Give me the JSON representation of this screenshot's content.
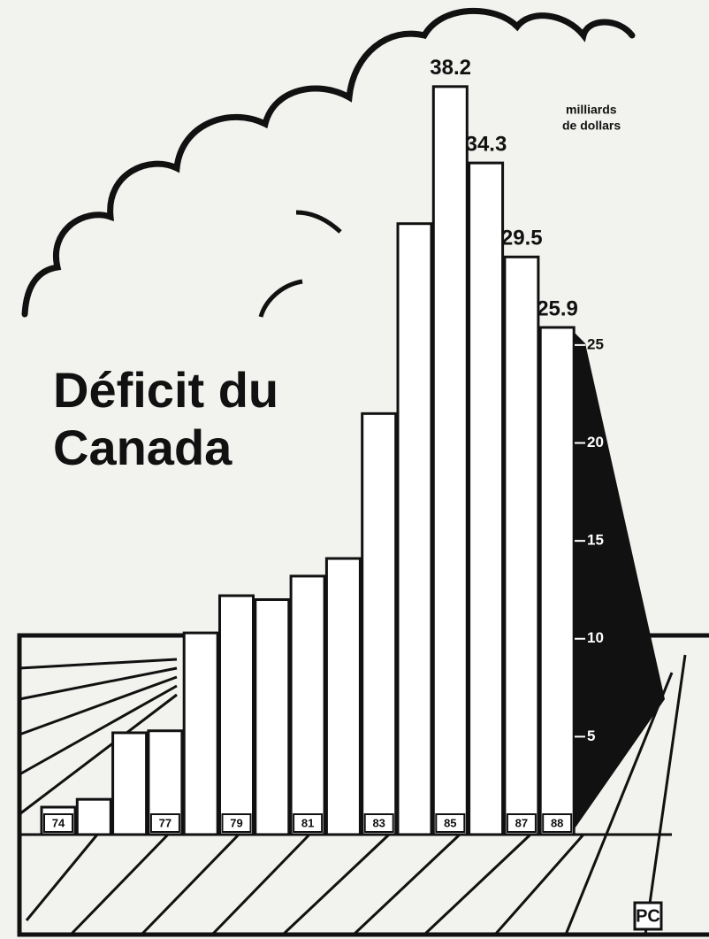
{
  "chart_data": {
    "type": "bar",
    "title": [
      "Déficit du",
      "Canada"
    ],
    "units": [
      "milliards",
      "de dollars"
    ],
    "credit": "PC",
    "categories": [
      "74",
      null,
      null,
      "77",
      null,
      "79",
      null,
      "81",
      null,
      "83",
      null,
      "85",
      null,
      "87",
      "88"
    ],
    "values": [
      1.4,
      1.8,
      5.2,
      5.3,
      10.3,
      12.2,
      12.0,
      13.2,
      14.1,
      21.5,
      31.2,
      38.2,
      34.3,
      29.5,
      25.9
    ],
    "value_labels": [
      null,
      null,
      null,
      null,
      null,
      null,
      null,
      null,
      null,
      null,
      null,
      "38.2",
      "34.3",
      "29.5",
      "25.9"
    ],
    "color": "#ffffff",
    "ylim": [
      0,
      40
    ],
    "yticks": [
      5,
      10,
      15,
      20,
      25
    ]
  }
}
